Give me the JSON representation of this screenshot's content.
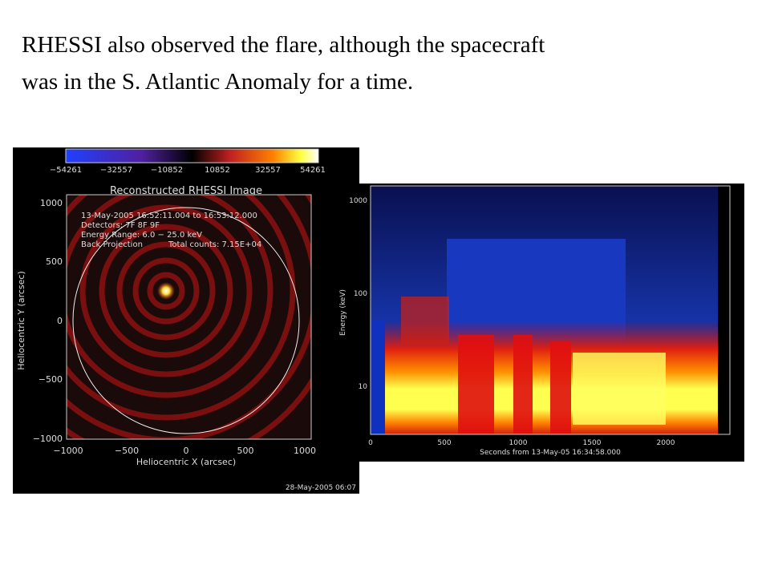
{
  "slide": {
    "text_lines": [
      "RHESSI also observed the flare, although the spacecraft",
      "was in the S. Atlantic Anomaly for a time."
    ]
  },
  "image_left": {
    "colorbar_ticks": [
      "−54261",
      "−32557",
      "−10852",
      "10852",
      "32557",
      "54261"
    ],
    "title": "Reconstructed RHESSI Image",
    "annotations": [
      "13-May-2005 16:52:11.004 to 16:53:12.000",
      "Detectors: 7F 8F 9F",
      "Energy Range: 6.0 − 25.0 keV",
      "Back Projection",
      "Total counts: 7.15E+04"
    ],
    "x_label": "Heliocentric X (arcsec)",
    "y_label": "Heliocentric Y (arcsec)",
    "x_ticks": [
      "−1000",
      "−500",
      "0",
      "500",
      "1000"
    ],
    "y_ticks": [
      "1000",
      "500",
      "0",
      "−500",
      "−1000"
    ],
    "timestamp": "28-May-2005 06:07"
  },
  "image_right": {
    "y_label": "Energy (keV)",
    "y_ticks": [
      "1000",
      "100",
      "10"
    ],
    "x_ticks": [
      "0",
      "500",
      "1000",
      "1500",
      "2000"
    ],
    "x_label": "Seconds from 13-May-05 16:34:58.000"
  }
}
